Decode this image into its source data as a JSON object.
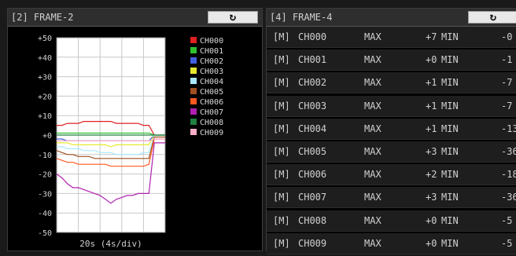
{
  "frame2": {
    "title": "[2] FRAME-2",
    "refresh_icon": "refresh-icon",
    "chart_data": {
      "type": "line",
      "x": [
        0,
        1,
        2,
        3,
        4,
        5,
        6,
        7,
        8,
        9,
        10,
        11,
        12,
        13,
        14,
        15,
        16,
        17,
        18,
        19,
        20
      ],
      "xlabel": "20s (4s/div)",
      "ylim": [
        -50,
        50
      ],
      "yticks": [
        "+50",
        "+40",
        "+30",
        "+20",
        "+10",
        "+0",
        "-10",
        "-20",
        "-30",
        "-40",
        "-50"
      ],
      "grid": true,
      "legend_position": "right",
      "series": [
        {
          "name": "CH000",
          "color": "#e02020",
          "values": [
            5,
            5,
            6,
            6,
            6,
            7,
            7,
            7,
            7,
            7,
            7,
            6,
            6,
            6,
            6,
            6,
            5,
            5,
            0,
            0,
            0
          ]
        },
        {
          "name": "CH001",
          "color": "#30c030",
          "values": [
            1,
            1,
            1,
            1,
            1,
            1,
            1,
            1,
            1,
            1,
            1,
            1,
            1,
            1,
            1,
            1,
            1,
            1,
            0,
            0,
            0
          ]
        },
        {
          "name": "CH002",
          "color": "#4060e0",
          "values": [
            -2,
            -2,
            -3,
            -3,
            -3,
            -3,
            -3,
            -3,
            -3,
            -3,
            -3,
            -3,
            -3,
            -3,
            -3,
            -3,
            -3,
            -3,
            0,
            0,
            0
          ]
        },
        {
          "name": "CH003",
          "color": "#e8e830",
          "values": [
            -4,
            -4,
            -4,
            -5,
            -5,
            -5,
            -5,
            -5,
            -5,
            -5,
            -6,
            -5,
            -5,
            -5,
            -5,
            -5,
            -5,
            -5,
            0,
            0,
            0
          ]
        },
        {
          "name": "CH004",
          "color": "#a8e8ff",
          "values": [
            -6,
            -6,
            -7,
            -7,
            -7,
            -8,
            -8,
            -8,
            -9,
            -9,
            -9,
            -10,
            -10,
            -10,
            -10,
            -10,
            -9,
            -9,
            0,
            0,
            0
          ]
        },
        {
          "name": "CH005",
          "color": "#a05020",
          "values": [
            -8,
            -9,
            -10,
            -10,
            -11,
            -11,
            -11,
            -12,
            -12,
            -12,
            -12,
            -12,
            -12,
            -12,
            -12,
            -12,
            -12,
            -12,
            -1,
            -1,
            -1
          ]
        },
        {
          "name": "CH006",
          "color": "#ff5a20",
          "values": [
            -12,
            -13,
            -14,
            -14,
            -15,
            -15,
            -15,
            -15,
            -15,
            -15,
            -16,
            -16,
            -16,
            -16,
            -16,
            -16,
            -16,
            -15,
            -2,
            -2,
            -2
          ]
        },
        {
          "name": "CH007",
          "color": "#b020b0",
          "values": [
            -20,
            -22,
            -25,
            -27,
            -27,
            -28,
            -29,
            -30,
            -31,
            -33,
            -35,
            -33,
            -32,
            -31,
            -31,
            -30,
            -30,
            -30,
            -4,
            -4,
            -4
          ]
        },
        {
          "name": "CH008",
          "color": "#208040",
          "values": [
            0,
            0,
            0,
            0,
            0,
            0,
            0,
            0,
            0,
            0,
            0,
            0,
            0,
            0,
            0,
            0,
            0,
            0,
            0,
            0,
            0
          ]
        },
        {
          "name": "CH009",
          "color": "#ffb0c8",
          "values": [
            -3,
            -3,
            -3,
            -3,
            -3,
            -3,
            -3,
            -3,
            -3,
            -3,
            -3,
            -3,
            -3,
            -3,
            -3,
            -3,
            -3,
            -3,
            -2,
            -2,
            -2
          ]
        }
      ]
    }
  },
  "frame4": {
    "title": "[4] FRAME-4",
    "refresh_icon": "refresh-icon",
    "rows": [
      {
        "tag": "[M]",
        "channel": "CH000",
        "max_label": "MAX",
        "max_value": "+7",
        "min_label": "MIN",
        "min_value": "-0"
      },
      {
        "tag": "[M]",
        "channel": "CH001",
        "max_label": "MAX",
        "max_value": "+0",
        "min_label": "MIN",
        "min_value": "-1"
      },
      {
        "tag": "[M]",
        "channel": "CH002",
        "max_label": "MAX",
        "max_value": "+1",
        "min_label": "MIN",
        "min_value": "-7"
      },
      {
        "tag": "[M]",
        "channel": "CH003",
        "max_label": "MAX",
        "max_value": "+1",
        "min_label": "MIN",
        "min_value": "-7"
      },
      {
        "tag": "[M]",
        "channel": "CH004",
        "max_label": "MAX",
        "max_value": "+1",
        "min_label": "MIN",
        "min_value": "-13"
      },
      {
        "tag": "[M]",
        "channel": "CH005",
        "max_label": "MAX",
        "max_value": "+3",
        "min_label": "MIN",
        "min_value": "-36"
      },
      {
        "tag": "[M]",
        "channel": "CH006",
        "max_label": "MAX",
        "max_value": "+2",
        "min_label": "MIN",
        "min_value": "-18"
      },
      {
        "tag": "[M]",
        "channel": "CH007",
        "max_label": "MAX",
        "max_value": "+3",
        "min_label": "MIN",
        "min_value": "-36"
      },
      {
        "tag": "[M]",
        "channel": "CH008",
        "max_label": "MAX",
        "max_value": "+0",
        "min_label": "MIN",
        "min_value": "-5"
      },
      {
        "tag": "[M]",
        "channel": "CH009",
        "max_label": "MAX",
        "max_value": "+0",
        "min_label": "MIN",
        "min_value": "-5"
      }
    ]
  }
}
